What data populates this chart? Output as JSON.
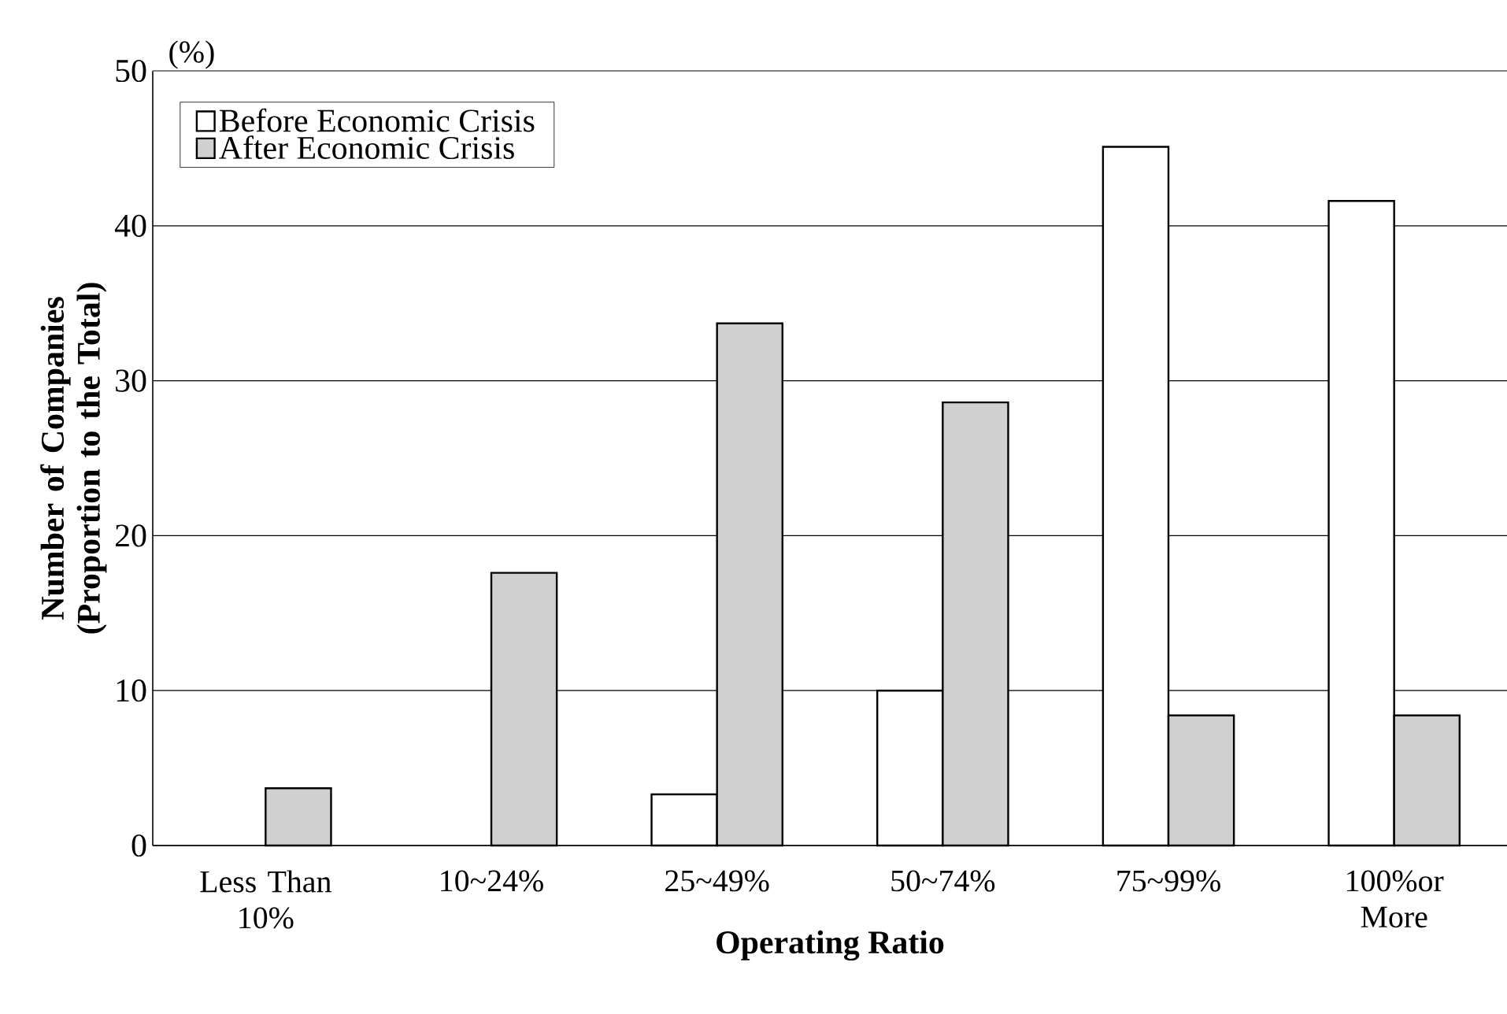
{
  "chart_data": {
    "type": "bar",
    "categories": [
      "Less Than 10%",
      "10~24%",
      "25~49%",
      "50~74%",
      "75~99%",
      "100%or More"
    ],
    "series": [
      {
        "name": "Before Economic Crisis",
        "color": "#ffffff",
        "values": [
          null,
          null,
          3.3,
          10.0,
          45.1,
          41.6
        ]
      },
      {
        "name": "After Economic Crisis",
        "color": "#d0d0d0",
        "values": [
          3.7,
          17.6,
          33.7,
          28.6,
          8.4,
          8.4
        ]
      }
    ],
    "ylim": [
      0,
      50
    ],
    "yticks": [
      0,
      10,
      20,
      30,
      40,
      50
    ],
    "grid": "y",
    "legend": "top left",
    "xlabel": "Operating Ratio",
    "ylabel": "Number of Companies (Proportion to the Total)",
    "annotations": [
      "(%)"
    ]
  }
}
